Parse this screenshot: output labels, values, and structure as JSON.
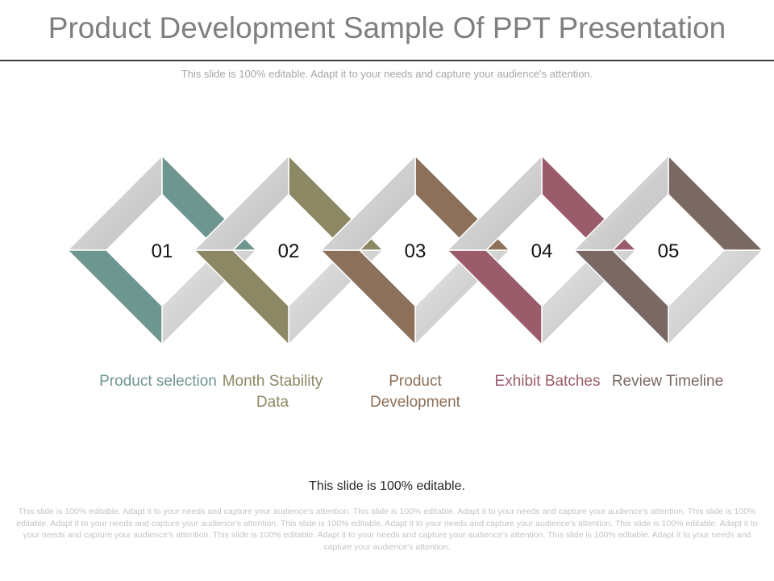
{
  "slide": {
    "title": "Product Development Sample Of PPT Presentation",
    "subtitle": "This slide is 100% editable. Adapt it to your needs and capture your audience's attention.",
    "footer_title": "This slide is 100% editable.",
    "footer_body": "This slide is 100% editable. Adapt it to your needs and capture your audience's attention. This slide is 100% editable. Adapt it to your needs and capture your audience's attention. This slide is 100% editable. Adapt it to your needs and capture your audience's attention. This slide is 100% editable. Adapt it to your needs and capture your audience's attention. This slide is 100% editable. Adapt it to your needs and capture your audience's attention. This slide is 100% editable. Adapt it to your needs and capture your audience's attention. This slide is 100% editable. Adapt it to your needs and capture your audience's attention."
  },
  "steps": [
    {
      "number": "01",
      "label": "Product selection",
      "color": "#6e9690"
    },
    {
      "number": "02",
      "label": "Month Stability Data",
      "color": "#8c8864"
    },
    {
      "number": "03",
      "label": "Product Development",
      "color": "#8c7059"
    },
    {
      "number": "04",
      "label": "Exhibit Batches",
      "color": "#9a5c6a"
    },
    {
      "number": "05",
      "label": "Review Timeline",
      "color": "#7a6862"
    }
  ],
  "colors": {
    "ribbon_gray": "#d0d0d0",
    "ribbon_gray_dark": "#b8b8b8",
    "title": "#7f7f7f"
  }
}
